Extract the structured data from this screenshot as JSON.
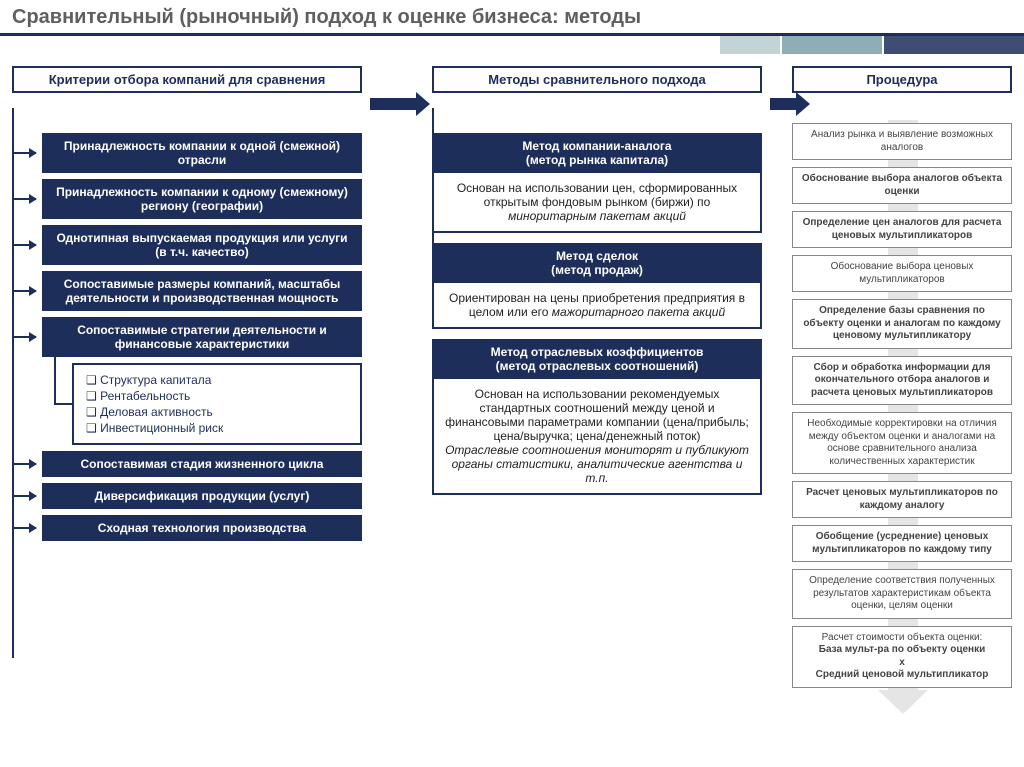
{
  "title": "Сравнительный (рыночный) подход к оценке бизнеса: методы",
  "colors": {
    "primary": "#1e2e5a",
    "titleText": "#5f5f5f",
    "procBorder": "#888888",
    "bg": "#ffffff",
    "arrowGray": "#cccccc"
  },
  "columns": {
    "c1": {
      "header": "Критерии отбора компаний для сравнения"
    },
    "c2": {
      "header": "Методы сравнительного подхода"
    },
    "c3": {
      "header": "Процедура"
    }
  },
  "criteria": [
    "Принадлежность компании к одной (смежной) отрасли",
    "Принадлежность компании к одному (смежному) региону (географии)",
    "Однотипная выпускаемая продукция или услуги (в т.ч. качество)",
    "Сопоставимые размеры компаний, масштабы деятельности и производственная мощность",
    "Сопоставимые стратегии деятельности и финансовые характеристики"
  ],
  "sub_criteria": [
    "Структура капитала",
    "Рентабельность",
    "Деловая активность",
    "Инвестиционный риск"
  ],
  "criteria2": [
    "Сопоставимая стадия жизненного цикла",
    "Диверсификация продукции (услуг)",
    "Сходная технология производства"
  ],
  "methods": [
    {
      "title": "Метод компании-аналога\n(метод рынка капитала)",
      "desc_a": "Основан на использовании цен, сформированных открытым фондовым рынком (биржи) по ",
      "desc_i": "миноритарным пакетам акций"
    },
    {
      "title": "Метод сделок\n(метод продаж)",
      "desc_a": "Ориентирован на цены приобретения предприятия в целом или его ",
      "desc_i": "мажоритарного пакета акций"
    },
    {
      "title": "Метод отраслевых коэффициентов\n(метод отраслевых соотношений)",
      "desc_a": "Основан на использовании рекомендуемых стандартных соотношений между ценой и финансовыми параметрами компании (цена/прибыль; цена/выручка; цена/денежный поток)\n",
      "desc_i": "Отраслевые соотношения мониторят и публикуют органы статистики, аналитические агентства и т.п."
    }
  ],
  "procedure": [
    {
      "t": "Анализ рынка и выявление возможных аналогов"
    },
    {
      "t": "Обоснование выбора аналогов объекта оценки",
      "b": true
    },
    {
      "t": "Определение цен аналогов для расчета ценовых мультипликаторов",
      "b": true
    },
    {
      "t": "Обоснование выбора ценовых мультипликаторов"
    },
    {
      "t": "Определение базы сравнения по объекту оценки и аналогам по каждому ценовому мультипликатору",
      "b": true
    },
    {
      "t": "Сбор и обработка информации для окончательного отбора аналогов и расчета ценовых мультипликаторов",
      "b": true
    },
    {
      "t": "Необходимые корректировки на отличия между объектом оценки и аналогами на основе сравнительного анализа количественных характеристик"
    },
    {
      "t": "Расчет ценовых мультипликаторов по каждому аналогу",
      "b": true
    },
    {
      "t": "Обобщение (усреднение) ценовых мультипликаторов по каждому типу",
      "b": true
    },
    {
      "t": "Определение соответствия полученных результатов характеристикам объекта оценки, целям оценки"
    }
  ],
  "procedure_final": {
    "line1": "Расчет стоимости объекта оценки:",
    "line2": "База мульт-ра по объекту оценки",
    "line3": "х",
    "line4": "Средний ценовой мультипликатор"
  }
}
